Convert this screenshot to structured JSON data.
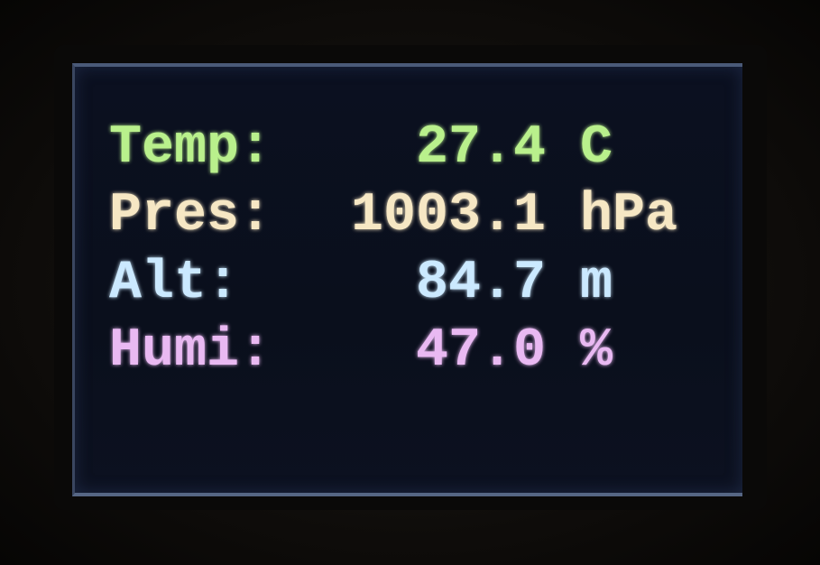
{
  "readings": [
    {
      "label": "Temp:",
      "value": "27.4",
      "unit": "C"
    },
    {
      "label": "Pres:",
      "value": "1003.1",
      "unit": "hPa"
    },
    {
      "label": "Alt:",
      "value": "84.7",
      "unit": "m"
    },
    {
      "label": "Humi:",
      "value": "47.0",
      "unit": "%"
    }
  ]
}
